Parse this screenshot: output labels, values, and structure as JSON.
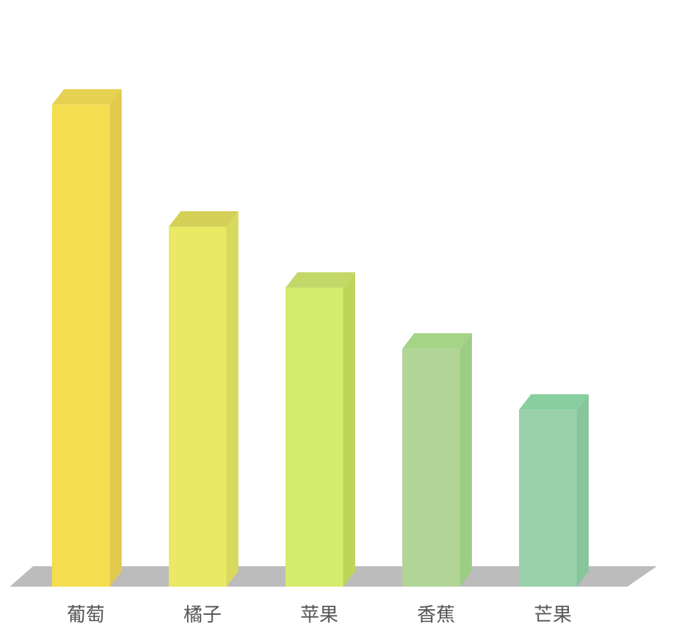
{
  "chart_data": {
    "type": "bar",
    "categories": [
      "葡萄",
      "橘子",
      "苹果",
      "香蕉",
      "芒果"
    ],
    "values": [
      79,
      59,
      49,
      39,
      29
    ],
    "ylim": [
      0,
      80
    ],
    "grid": false,
    "legend": "none",
    "colors": [
      {
        "front": "#f4de50",
        "side": "#e2ca4f",
        "top": "#e6d150"
      },
      {
        "front": "#e9e964",
        "side": "#d9d960",
        "top": "#d3cf57"
      },
      {
        "front": "#d3ec6b",
        "side": "#bfd55a",
        "top": "#c4d86a"
      },
      {
        "front": "#b0d596",
        "side": "#9ccd84",
        "top": "#a5d485"
      },
      {
        "front": "#99d1aa",
        "side": "#87c59b",
        "top": "#88cfa0"
      }
    ],
    "floor_color": "#bcbcbc"
  }
}
